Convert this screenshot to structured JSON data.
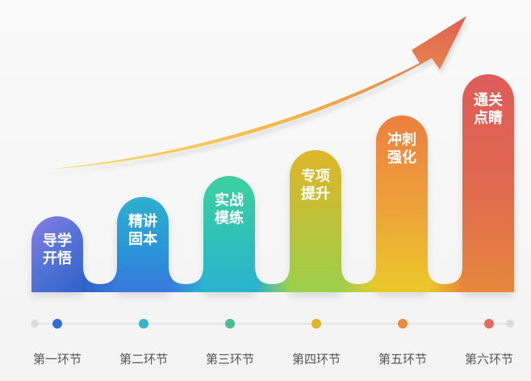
{
  "stages": [
    {
      "title_line1": "导学",
      "title_line2": "开悟",
      "stage_label": "第一环节",
      "color": "#2f6fd6"
    },
    {
      "title_line1": "精讲",
      "title_line2": "固本",
      "stage_label": "第二环节",
      "color": "#3ab0c9"
    },
    {
      "title_line1": "实战",
      "title_line2": "模练",
      "stage_label": "第三环节",
      "color": "#49bd8a"
    },
    {
      "title_line1": "专项",
      "title_line2": "提升",
      "stage_label": "第四环节",
      "color": "#e0b328"
    },
    {
      "title_line1": "冲刺",
      "title_line2": "强化",
      "stage_label": "第五环节",
      "color": "#ec8a3f"
    },
    {
      "title_line1": "通关",
      "title_line2": "点睛",
      "stage_label": "第六环节",
      "color": "#e06a5c"
    }
  ],
  "colors": {
    "arrow_start": "#f7d24a",
    "arrow_end": "#e0614f",
    "timeline": "#e4e4e4"
  }
}
